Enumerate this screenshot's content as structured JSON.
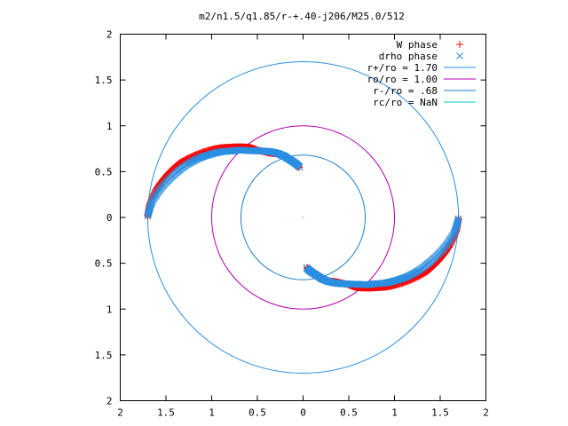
{
  "chart_data": {
    "type": "scatter",
    "title": "m2/n1.5/q1.85/r-+.40-j206/M25.0/512",
    "xlabel": "",
    "ylabel": "",
    "xlim": [
      -2,
      2
    ],
    "ylim": [
      -2,
      2
    ],
    "x_tick_values": [
      -2,
      -1.5,
      -1,
      -0.5,
      0,
      0.5,
      1,
      1.5,
      2
    ],
    "x_tick_labels": [
      "2",
      "1.5",
      "1",
      "0.5",
      "0",
      "0.5",
      "1",
      "1.5",
      "2"
    ],
    "y_tick_values": [
      2,
      1.5,
      1,
      0.5,
      0,
      -0.5,
      -1,
      -1.5,
      -2
    ],
    "y_tick_labels": [
      "2",
      "1.5",
      "1",
      "0.5",
      "0",
      "0.5",
      "1",
      "1.5",
      "2"
    ],
    "grid": false,
    "legend_position": "top-right",
    "series": [
      {
        "name": "W phase",
        "kind": "points",
        "marker": "plus",
        "color": "#ff0000",
        "arcs": [
          {
            "theta": [
              179.5,
              174.5,
              168.5,
              162.5,
              156.5,
              151,
              145.5,
              140.5,
              136.5,
              133,
              130,
              128,
              126,
              124,
              121,
              118,
              115,
              112,
              109.5,
              107.5,
              105.5,
              103,
              100,
              97,
              94.5
            ],
            "r": [
              1.7,
              1.68,
              1.63,
              1.56,
              1.48,
              1.38,
              1.28,
              1.19,
              1.11,
              1.05,
              1.0,
              0.97,
              0.93,
              0.88,
              0.84,
              0.8,
              0.77,
              0.75,
              0.73,
              0.71,
              0.68,
              0.65,
              0.62,
              0.58,
              0.55
            ]
          },
          {
            "theta": [
              359.5,
              354.5,
              348.5,
              342.5,
              336.5,
              331,
              325.5,
              320.5,
              316.5,
              313,
              310,
              308,
              306,
              304,
              301,
              298,
              295,
              292,
              289.5,
              287.5,
              285.5,
              283,
              280,
              277,
              274.5
            ],
            "r": [
              1.7,
              1.68,
              1.63,
              1.56,
              1.48,
              1.38,
              1.28,
              1.19,
              1.11,
              1.05,
              1.0,
              0.97,
              0.93,
              0.88,
              0.84,
              0.8,
              0.77,
              0.75,
              0.73,
              0.71,
              0.68,
              0.65,
              0.62,
              0.58,
              0.55
            ]
          }
        ]
      },
      {
        "name": "drho phase",
        "kind": "points",
        "marker": "cross",
        "color": "#2c8fe0",
        "arcs": [
          {
            "theta": [
              179.5,
              174,
              168,
              162,
              156,
              150.5,
              145.5,
              141,
              137.5,
              134,
              131,
              128.5,
              126,
              123.5,
              120.5,
              117.5,
              114.5,
              111.5,
              109,
              107,
              105,
              102.5,
              99.5,
              96.5,
              94
            ],
            "r": [
              1.7,
              1.66,
              1.58,
              1.49,
              1.4,
              1.31,
              1.22,
              1.14,
              1.07,
              1.02,
              0.97,
              0.93,
              0.9,
              0.87,
              0.84,
              0.81,
              0.78,
              0.75,
              0.72,
              0.7,
              0.67,
              0.64,
              0.61,
              0.58,
              0.55
            ]
          },
          {
            "theta": [
              359.5,
              354,
              348,
              342,
              336,
              330.5,
              325.5,
              321,
              317.5,
              314,
              311,
              308.5,
              306,
              303.5,
              300.5,
              297.5,
              294.5,
              291.5,
              289,
              287,
              285,
              282.5,
              279.5,
              276.5,
              274
            ],
            "r": [
              1.7,
              1.66,
              1.58,
              1.49,
              1.4,
              1.31,
              1.22,
              1.14,
              1.07,
              1.02,
              0.97,
              0.93,
              0.9,
              0.87,
              0.84,
              0.81,
              0.78,
              0.75,
              0.72,
              0.7,
              0.67,
              0.64,
              0.61,
              0.58,
              0.55
            ]
          }
        ]
      },
      {
        "name": "r+/ro = 1.70",
        "kind": "circle",
        "radius": 1.7,
        "color": "#2c8fe0"
      },
      {
        "name": "ro/ro = 1.00",
        "kind": "circle",
        "radius": 1.0,
        "color": "#b000b0"
      },
      {
        "name": "r-/ro = .68",
        "kind": "circle",
        "radius": 0.68,
        "color": "#1e7fc8"
      },
      {
        "name": "rc/ro = NaN",
        "kind": "circle",
        "radius": null,
        "color": "#00c8d8"
      }
    ]
  }
}
